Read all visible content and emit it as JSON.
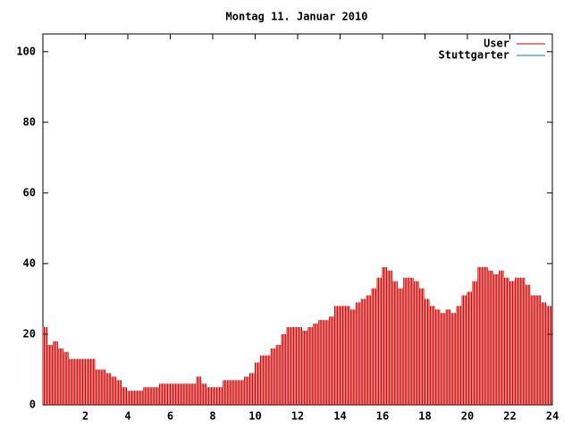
{
  "chart_data": {
    "type": "impulse",
    "title": "Montag 11. Januar 2010",
    "x": [
      0,
      0.25,
      0.5,
      0.75,
      1,
      1.25,
      1.5,
      1.75,
      2,
      2.25,
      2.5,
      2.75,
      3,
      3.25,
      3.5,
      3.75,
      4,
      4.25,
      4.5,
      4.75,
      5,
      5.25,
      5.5,
      5.75,
      6,
      6.25,
      6.5,
      6.75,
      7,
      7.25,
      7.5,
      7.75,
      8,
      8.25,
      8.5,
      8.75,
      9,
      9.25,
      9.5,
      9.75,
      10,
      10.25,
      10.5,
      10.75,
      11,
      11.25,
      11.5,
      11.75,
      12,
      12.25,
      12.5,
      12.75,
      13,
      13.25,
      13.5,
      13.75,
      14,
      14.25,
      14.5,
      14.75,
      15,
      15.25,
      15.5,
      15.75,
      16,
      16.25,
      16.5,
      16.75,
      17,
      17.25,
      17.5,
      17.75,
      18,
      18.25,
      18.5,
      18.75,
      19,
      19.25,
      19.5,
      19.75,
      20,
      20.25,
      20.5,
      20.75,
      21,
      21.25,
      21.5,
      21.75,
      22,
      22.25,
      22.5,
      22.75,
      23,
      23.25,
      23.5,
      23.75
    ],
    "series": [
      {
        "name": "User",
        "color": "#cc0000",
        "values": [
          22,
          17,
          18,
          16,
          15,
          13,
          13,
          13,
          13,
          13,
          10,
          10,
          9,
          8,
          7,
          5,
          4,
          4,
          4,
          5,
          5,
          5,
          6,
          6,
          6,
          6,
          6,
          6,
          6,
          8,
          6,
          5,
          5,
          5,
          7,
          7,
          7,
          7,
          8,
          9,
          12,
          14,
          14,
          16,
          17,
          20,
          22,
          22,
          22,
          21,
          22,
          23,
          24,
          24,
          25,
          28,
          28,
          28,
          27,
          29,
          30,
          31,
          33,
          36,
          39,
          38,
          35,
          33,
          36,
          36,
          35,
          33,
          30,
          28,
          27,
          26,
          27,
          26,
          28,
          31,
          32,
          35,
          39,
          39,
          38,
          37,
          38,
          36,
          35,
          36,
          36,
          34,
          31,
          31,
          29,
          28
        ]
      },
      {
        "name": "Stuttgarter",
        "color": "#008b8b",
        "values": [
          null,
          null,
          null,
          null,
          null,
          null,
          null,
          null,
          null,
          null,
          null,
          null,
          null,
          null,
          null,
          null,
          null,
          null,
          null,
          null,
          null,
          null,
          null,
          null,
          null,
          null,
          null,
          null,
          null,
          null,
          null,
          null,
          null,
          null,
          null,
          null,
          null,
          null,
          null,
          null,
          null,
          null,
          null,
          null,
          null,
          null,
          null,
          null,
          null,
          null,
          null,
          null,
          null,
          null,
          null,
          null,
          null,
          null,
          null,
          null,
          null,
          null,
          null,
          null,
          null,
          null,
          null,
          null,
          null,
          null,
          null,
          null,
          null,
          null,
          null,
          null,
          null,
          null,
          null,
          null,
          null,
          null,
          null,
          null,
          null,
          null,
          null,
          null,
          null,
          null,
          null,
          null,
          null,
          null,
          null,
          null
        ]
      }
    ],
    "xlim": [
      0,
      24
    ],
    "xticks": [
      2,
      4,
      6,
      8,
      10,
      12,
      14,
      16,
      18,
      20,
      22,
      24
    ],
    "ylim": [
      0,
      105
    ],
    "yticks": [
      0,
      20,
      40,
      60,
      80,
      100
    ],
    "legend": "top-right"
  }
}
